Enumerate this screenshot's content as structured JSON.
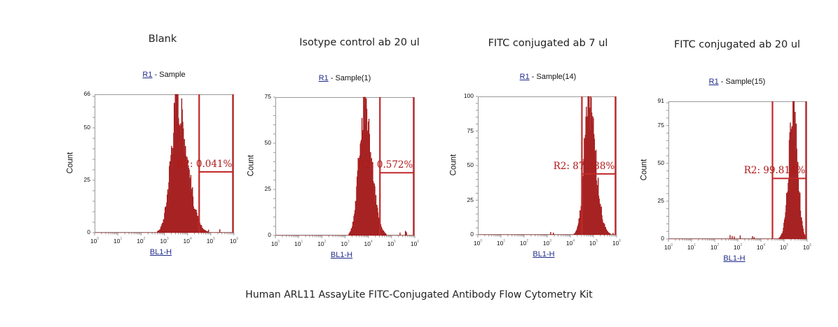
{
  "caption": "Human ARL11 AssayLite FITC-Conjugated Antibody Flow Cytometry Kit",
  "colors": {
    "histogram": "#a01010",
    "gate": "#c0282a",
    "axis": "#9a9a9a",
    "link": "#1f2a8a"
  },
  "panels": [
    {
      "title": "Blank",
      "r1": "R1",
      "sample": " - Sample",
      "ylabel": "Count",
      "xlabel": "BL1-H",
      "ymax_label": "66",
      "gate_label": "R2: 0.041%"
    },
    {
      "title": "Isotype control ab 20 ul",
      "r1": "R1",
      "sample": " - Sample(1)",
      "ylabel": "Count",
      "xlabel": "BL1-H",
      "ymax_label": "75",
      "gate_label": "R2: 0.572%"
    },
    {
      "title": "FITC conjugated ab 7 ul",
      "r1": "R1",
      "sample": " - Sample(14)",
      "ylabel": "Count",
      "xlabel": "BL1-H",
      "ymax_label": "100",
      "gate_label": "R2: 87.238%"
    },
    {
      "title": "FITC conjugated ab 20 ul",
      "r1": "R1",
      "sample": " - Sample(15)",
      "ylabel": "Count",
      "xlabel": "BL1-H",
      "ymax_label": "91",
      "gate_label": "R2: 99.814%"
    }
  ],
  "chart_data": [
    {
      "type": "area",
      "title": "Blank",
      "subtitle": "R1 - Sample",
      "xlabel": "BL1-H",
      "ylabel": "Count",
      "xscale": "log",
      "xlim": [
        1,
        1000000
      ],
      "ylim": [
        0,
        66
      ],
      "yticks": [
        0,
        25,
        50,
        66
      ],
      "xticks": [
        "10^0",
        "10^1",
        "10^2",
        "10^3",
        "10^4",
        "10^5",
        "10^6"
      ],
      "peak_log10": 3.55,
      "peak_count": 66,
      "width_log10": 0.28,
      "tail_log10": 0.42,
      "gate": {
        "name": "R2",
        "from_log10": 4.5,
        "to_log10": 5.95,
        "percent": 0.041,
        "label": "R2: 0.041%",
        "bar_y": 29
      }
    },
    {
      "type": "area",
      "title": "Isotype control ab 20 ul",
      "subtitle": "R1 - Sample(1)",
      "xlabel": "BL1-H",
      "ylabel": "Count",
      "xscale": "log",
      "xlim": [
        1,
        1000000
      ],
      "ylim": [
        0,
        75
      ],
      "yticks": [
        0,
        25,
        50,
        75
      ],
      "xticks": [
        "10^0",
        "10^1",
        "10^2",
        "10^3",
        "10^4",
        "10^5",
        "10^6"
      ],
      "peak_log10": 3.8,
      "peak_count": 75,
      "width_log10": 0.22,
      "tail_log10": 0.32,
      "gate": {
        "name": "R2",
        "from_log10": 4.5,
        "to_log10": 5.95,
        "percent": 0.572,
        "label": "R2: 0.572%",
        "bar_y": 34
      }
    },
    {
      "type": "area",
      "title": "FITC conjugated ab 7 ul",
      "subtitle": "R1 - Sample(14)",
      "xlabel": "BL1-H",
      "ylabel": "Count",
      "xscale": "log",
      "xlim": [
        1,
        1000000
      ],
      "ylim": [
        0,
        100
      ],
      "yticks": [
        0,
        25,
        50,
        75,
        100
      ],
      "xticks": [
        "10^0",
        "10^1",
        "10^2",
        "10^3",
        "10^4",
        "10^5",
        "10^6"
      ],
      "peak_log10": 4.78,
      "peak_count": 100,
      "width_log10": 0.2,
      "tail_log10": 0.3,
      "gate": {
        "name": "R2",
        "from_log10": 4.5,
        "to_log10": 5.95,
        "percent": 87.238,
        "label": "R2: 87.238%",
        "bar_y": 44
      }
    },
    {
      "type": "area",
      "title": "FITC conjugated ab 20 ul",
      "subtitle": "R1 - Sample(15)",
      "xlabel": "BL1-H",
      "ylabel": "Count",
      "xscale": "log",
      "xlim": [
        1,
        1000000
      ],
      "ylim": [
        0,
        91
      ],
      "yticks": [
        0,
        25,
        50,
        75,
        91
      ],
      "xticks": [
        "10^0",
        "10^1",
        "10^2",
        "10^3",
        "10^4",
        "10^5",
        "10^6"
      ],
      "peak_log10": 5.4,
      "peak_count": 91,
      "width_log10": 0.2,
      "tail_log10": 0.18,
      "gate": {
        "name": "R2",
        "from_log10": 4.5,
        "to_log10": 5.95,
        "percent": 99.814,
        "label": "R2: 99.814%",
        "bar_y": 40
      }
    }
  ]
}
